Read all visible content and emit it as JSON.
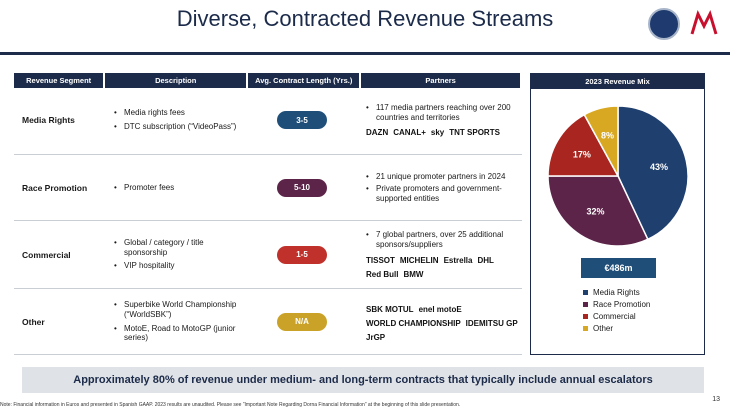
{
  "title": "Diverse, Contracted Revenue Streams",
  "table": {
    "headers": [
      "Revenue Segment",
      "Description",
      "Avg. Contract Length (Yrs.)",
      "Partners"
    ],
    "rows": [
      {
        "segment": "Media Rights",
        "description": [
          "Media rights fees",
          "DTC subscription (“VideoPass”)"
        ],
        "length": "3-5",
        "length_color": "#1f4e79",
        "partners": [
          "117 media partners reaching over 200 countries and territories"
        ],
        "brands": [
          "DAZN",
          "CANAL+",
          "sky",
          "TNT SPORTS"
        ]
      },
      {
        "segment": "Race Promotion",
        "description": [
          "Promoter fees"
        ],
        "length": "5-10",
        "length_color": "#5b2448",
        "partners": [
          "21 unique promoter partners in 2024",
          "Private promoters and government-supported entities"
        ],
        "brands": []
      },
      {
        "segment": "Commercial",
        "description": [
          "Global / category / title sponsorship",
          "VIP hospitality"
        ],
        "length": "1-5",
        "length_color": "#c0312b",
        "partners": [
          "7 global partners, over 25 additional sponsors/suppliers"
        ],
        "brands": [
          "TISSOT",
          "MICHELIN",
          "Estrella",
          "DHL",
          "Red Bull",
          "BMW"
        ]
      },
      {
        "segment": "Other",
        "description": [
          "Superbike World Championship (“WorldSBK”)",
          "MotoE, Road to MotoGP (junior series)"
        ],
        "length": "N/A",
        "length_color": "#c9a227",
        "partners": [],
        "brands": [
          "SBK MOTUL",
          "enel motoE",
          "WORLD CHAMPIONSHIP",
          "IDEMITSU GP",
          "JrGP"
        ]
      }
    ]
  },
  "mix": {
    "header": "2023 Revenue Mix",
    "total": "€486m"
  },
  "chart_data": {
    "type": "pie",
    "title": "2023 Revenue Mix",
    "categories": [
      "Media Rights",
      "Race Promotion",
      "Commercial",
      "Other"
    ],
    "values": [
      43,
      32,
      17,
      8
    ],
    "labels": [
      "43%",
      "32%",
      "17%",
      "8%"
    ],
    "colors": [
      "#1f3f6e",
      "#5b2448",
      "#a8261f",
      "#d9a822"
    ],
    "legend": "bottom"
  },
  "banner": "Approximately 80% of revenue under medium- and long-term contracts that typically include annual escalators",
  "note": "Note: Financial information in Euros and presented in Spanish GAAP. 2023 results are unaudited. Please see “Important Note Regarding Dorna Financial Information” at the beginning of this slide presentation.",
  "page": "13"
}
